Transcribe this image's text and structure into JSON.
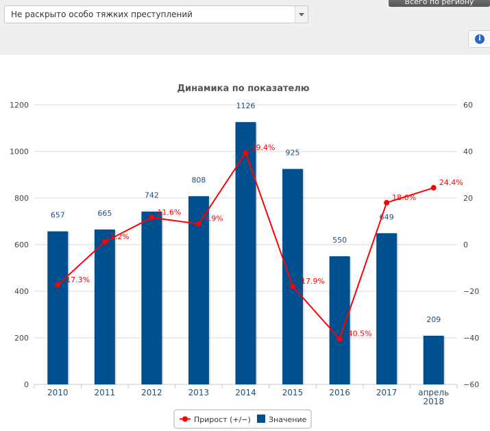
{
  "filter": {
    "selected": "Не раскрыто особо тяжких преступлений"
  },
  "region_button": {
    "label": "Всего по региону"
  },
  "info_icon": {
    "glyph": "i",
    "color": "#2a66c5"
  },
  "chart_data": {
    "type": "bar",
    "title": "Динамика по показателю",
    "categories": [
      "2010",
      "2011",
      "2012",
      "2013",
      "2014",
      "2015",
      "2016",
      "2017",
      "апрель 2018"
    ],
    "series": [
      {
        "name": "Значение",
        "type": "bar",
        "axis": "left",
        "color": "#00508f",
        "values": [
          657,
          665,
          742,
          808,
          1126,
          925,
          550,
          649,
          209
        ],
        "labels": [
          "657",
          "665",
          "742",
          "808",
          "1126",
          "925",
          "550",
          "649",
          "209"
        ]
      },
      {
        "name": "Прирост (+/−)",
        "type": "line",
        "axis": "right",
        "color": "#ff0000",
        "values": [
          -17.3,
          1.2,
          11.6,
          8.9,
          39.4,
          -17.9,
          -40.5,
          18.0,
          24.4
        ],
        "labels": [
          "-17.3%",
          "1.2%",
          "11.6%",
          "8.9%",
          "39.4%",
          "-17.9%",
          "-40.5%",
          "18.0%",
          "24.4%"
        ]
      }
    ],
    "y_left": {
      "min": 0,
      "max": 1200,
      "ticks": [
        "0",
        "200",
        "400",
        "600",
        "800",
        "1000",
        "1200"
      ]
    },
    "y_right": {
      "min": -60,
      "max": 60,
      "ticks": [
        "−60",
        "−40",
        "−20",
        "0",
        "20",
        "40",
        "60"
      ]
    },
    "grid": true,
    "legend_position": "bottom-center",
    "legend": [
      {
        "name": "Прирост (+/−)",
        "color": "#ff0000"
      },
      {
        "name": "Значение",
        "color": "#00508f"
      }
    ]
  }
}
